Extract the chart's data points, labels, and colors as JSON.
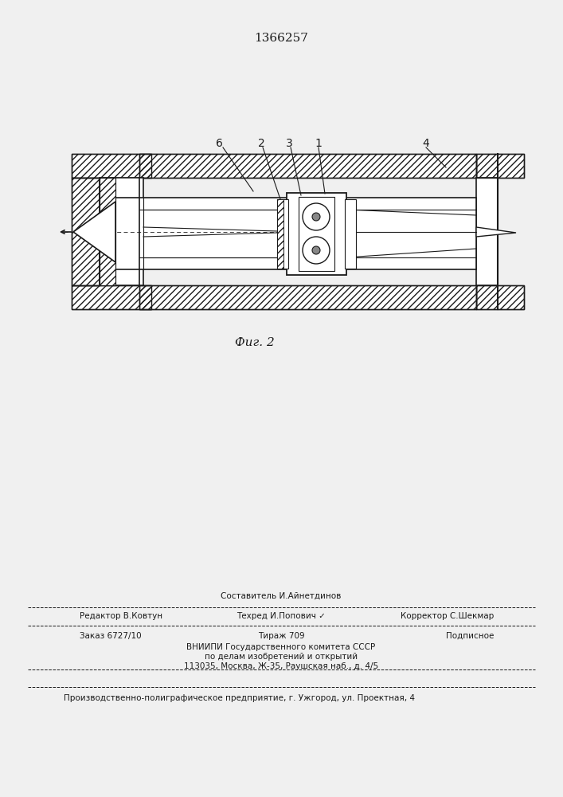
{
  "title": "1366257",
  "fig_label": "Фиг. 2",
  "bg_color": "#f0f0f0",
  "line_color": "#1a1a1a",
  "footer": {
    "comp": "Составитель И.Айнетдинов",
    "editor": "Редактор В.Ковтун",
    "tech": "Техред И.Попович ✓",
    "corr": "Корректор С.Шекмар",
    "order": "Заказ 6727/10",
    "circ": "Тираж 709",
    "sub": "Подписное",
    "inst1": "ВНИИПИ Государственного комитета СССР",
    "inst2": "по делам изобретений и открытий",
    "inst3": "113035, Москва, Ж-35, Раушская наб., д. 4/5",
    "prod": "Производственно-полиграфическое предприятие, г. Ужгород, ул. Проектная, 4"
  }
}
